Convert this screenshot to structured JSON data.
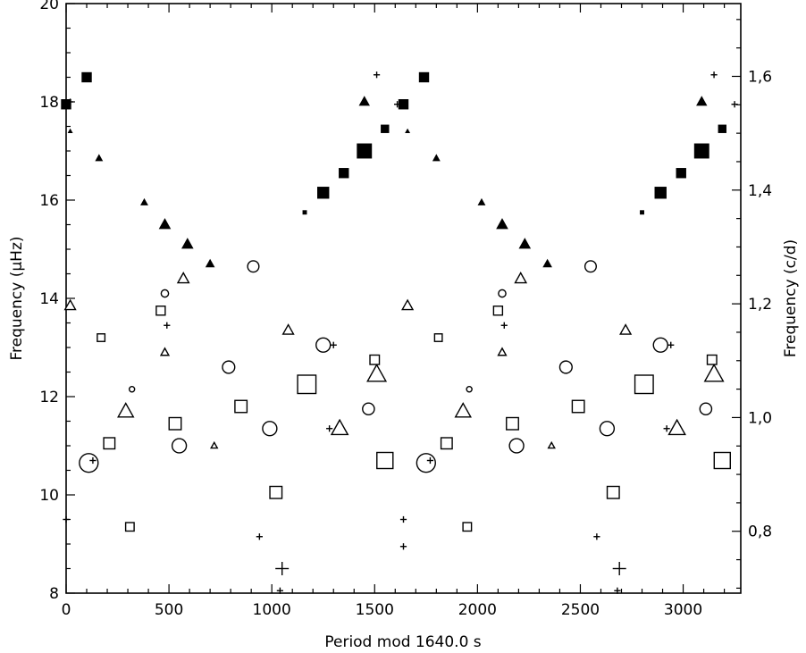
{
  "chart_data": {
    "type": "scatter",
    "xlabel": "Period mod 1640.0 s",
    "ylabel": "Frequency (μHz)",
    "y2label": "Frequency (c/d)",
    "xlim": [
      0,
      3280
    ],
    "ylim": [
      8,
      20
    ],
    "y2lim_c_per_d": [
      0.6912,
      1.728
    ],
    "x_ticks": [
      "0",
      "500",
      "1000",
      "1500",
      "2000",
      "2500",
      "3000"
    ],
    "y_ticks": [
      "8",
      "10",
      "12",
      "14",
      "16",
      "18",
      "20"
    ],
    "y2_ticks": [
      "0,8",
      "1,0",
      "1,2",
      "1,4",
      "1,6"
    ],
    "y2_tick_values": [
      0.8,
      1.0,
      1.2,
      1.4,
      1.6
    ],
    "marker_legend": {
      "filled-square": "sequence 1",
      "filled-triangle": "sequence 2",
      "open-triangle": "sequence 3",
      "open-square": "sequence 4",
      "open-circle": "sequence 5",
      "plus": "sequence 6"
    },
    "points": [
      {
        "m": "fsq",
        "s": 1.0,
        "x": 0,
        "y": 17.95
      },
      {
        "m": "fsq",
        "s": 1.0,
        "x": 100,
        "y": 18.5
      },
      {
        "m": "fsq",
        "s": 0.8,
        "x": 1550,
        "y": 17.45
      },
      {
        "m": "fsq",
        "s": 1.0,
        "x": 1640,
        "y": 17.95
      },
      {
        "m": "fsq",
        "s": 1.0,
        "x": 1740,
        "y": 18.5
      },
      {
        "m": "fsq",
        "s": 1.55,
        "x": 1450,
        "y": 17.0
      },
      {
        "m": "fsq",
        "s": 1.0,
        "x": 1350,
        "y": 16.55
      },
      {
        "m": "fsq",
        "s": 1.2,
        "x": 1250,
        "y": 16.15
      },
      {
        "m": "fsq",
        "s": 0.35,
        "x": 1160,
        "y": 15.75
      },
      {
        "m": "fsq",
        "s": 0.8,
        "x": 3190,
        "y": 17.45
      },
      {
        "m": "fsq",
        "s": 1.55,
        "x": 3090,
        "y": 17.0
      },
      {
        "m": "fsq",
        "s": 1.0,
        "x": 2990,
        "y": 16.55
      },
      {
        "m": "fsq",
        "s": 1.2,
        "x": 2890,
        "y": 16.15
      },
      {
        "m": "fsq",
        "s": 0.35,
        "x": 2800,
        "y": 15.75
      },
      {
        "m": "ftr",
        "s": 0.3,
        "x": 20,
        "y": 17.4
      },
      {
        "m": "ftr",
        "s": 0.55,
        "x": 160,
        "y": 16.85
      },
      {
        "m": "ftr",
        "s": 0.55,
        "x": 380,
        "y": 15.95
      },
      {
        "m": "ftr",
        "s": 0.95,
        "x": 480,
        "y": 15.5
      },
      {
        "m": "ftr",
        "s": 0.95,
        "x": 590,
        "y": 15.1
      },
      {
        "m": "ftr",
        "s": 0.7,
        "x": 700,
        "y": 14.7
      },
      {
        "m": "ftr",
        "s": 0.85,
        "x": 1450,
        "y": 18.0
      },
      {
        "m": "ftr",
        "s": 0.3,
        "x": 1660,
        "y": 17.4
      },
      {
        "m": "ftr",
        "s": 0.55,
        "x": 1800,
        "y": 16.85
      },
      {
        "m": "ftr",
        "s": 0.55,
        "x": 2020,
        "y": 15.95
      },
      {
        "m": "ftr",
        "s": 0.95,
        "x": 2120,
        "y": 15.5
      },
      {
        "m": "ftr",
        "s": 0.95,
        "x": 2230,
        "y": 15.1
      },
      {
        "m": "ftr",
        "s": 0.7,
        "x": 2340,
        "y": 14.7
      },
      {
        "m": "ftr",
        "s": 0.85,
        "x": 3090,
        "y": 18.0
      },
      {
        "m": "otr",
        "s": 1.0,
        "x": 20,
        "y": 13.85
      },
      {
        "m": "otr",
        "s": 0.75,
        "x": 480,
        "y": 12.9
      },
      {
        "m": "otr",
        "s": 1.05,
        "x": 570,
        "y": 14.4
      },
      {
        "m": "otr",
        "s": 1.45,
        "x": 290,
        "y": 11.7
      },
      {
        "m": "otr",
        "s": 0.6,
        "x": 720,
        "y": 11.0
      },
      {
        "m": "otr",
        "s": 1.0,
        "x": 1080,
        "y": 13.35
      },
      {
        "m": "otr",
        "s": 1.55,
        "x": 1330,
        "y": 11.35
      },
      {
        "m": "otr",
        "s": 1.75,
        "x": 1510,
        "y": 12.45
      },
      {
        "m": "otr",
        "s": 1.0,
        "x": 1660,
        "y": 13.85
      },
      {
        "m": "otr",
        "s": 0.75,
        "x": 2120,
        "y": 12.9
      },
      {
        "m": "otr",
        "s": 1.05,
        "x": 2210,
        "y": 14.4
      },
      {
        "m": "otr",
        "s": 1.45,
        "x": 1930,
        "y": 11.7
      },
      {
        "m": "otr",
        "s": 0.6,
        "x": 2360,
        "y": 11.0
      },
      {
        "m": "otr",
        "s": 1.0,
        "x": 2720,
        "y": 13.35
      },
      {
        "m": "otr",
        "s": 1.55,
        "x": 2970,
        "y": 11.35
      },
      {
        "m": "otr",
        "s": 1.75,
        "x": 3150,
        "y": 12.45
      },
      {
        "m": "osq",
        "s": 0.85,
        "x": 170,
        "y": 13.2
      },
      {
        "m": "osq",
        "s": 1.0,
        "x": 460,
        "y": 13.75
      },
      {
        "m": "osq",
        "s": 1.25,
        "x": 210,
        "y": 11.05
      },
      {
        "m": "osq",
        "s": 0.95,
        "x": 310,
        "y": 9.35
      },
      {
        "m": "osq",
        "s": 1.35,
        "x": 530,
        "y": 11.45
      },
      {
        "m": "osq",
        "s": 1.35,
        "x": 850,
        "y": 11.8
      },
      {
        "m": "osq",
        "s": 1.35,
        "x": 1020,
        "y": 10.05
      },
      {
        "m": "osq",
        "s": 2.05,
        "x": 1170,
        "y": 12.25
      },
      {
        "m": "osq",
        "s": 1.05,
        "x": 1500,
        "y": 12.75
      },
      {
        "m": "osq",
        "s": 1.8,
        "x": 1550,
        "y": 10.7
      },
      {
        "m": "osq",
        "s": 0.85,
        "x": 1810,
        "y": 13.2
      },
      {
        "m": "osq",
        "s": 1.0,
        "x": 2100,
        "y": 13.75
      },
      {
        "m": "osq",
        "s": 1.25,
        "x": 1850,
        "y": 11.05
      },
      {
        "m": "osq",
        "s": 0.95,
        "x": 1950,
        "y": 9.35
      },
      {
        "m": "osq",
        "s": 1.35,
        "x": 2170,
        "y": 11.45
      },
      {
        "m": "osq",
        "s": 1.35,
        "x": 2490,
        "y": 11.8
      },
      {
        "m": "osq",
        "s": 1.35,
        "x": 2660,
        "y": 10.05
      },
      {
        "m": "osq",
        "s": 2.05,
        "x": 2810,
        "y": 12.25
      },
      {
        "m": "osq",
        "s": 1.05,
        "x": 3140,
        "y": 12.75
      },
      {
        "m": "osq",
        "s": 1.8,
        "x": 3190,
        "y": 10.7
      },
      {
        "m": "ocir",
        "s": 0.55,
        "x": 320,
        "y": 12.15
      },
      {
        "m": "ocir",
        "s": 0.75,
        "x": 480,
        "y": 14.1
      },
      {
        "m": "ocir",
        "s": 1.9,
        "x": 110,
        "y": 10.65
      },
      {
        "m": "ocir",
        "s": 1.45,
        "x": 550,
        "y": 11.0
      },
      {
        "m": "ocir",
        "s": 1.25,
        "x": 790,
        "y": 12.6
      },
      {
        "m": "ocir",
        "s": 1.15,
        "x": 910,
        "y": 14.65
      },
      {
        "m": "ocir",
        "s": 1.45,
        "x": 990,
        "y": 11.35
      },
      {
        "m": "ocir",
        "s": 1.45,
        "x": 1250,
        "y": 13.05
      },
      {
        "m": "ocir",
        "s": 1.2,
        "x": 1470,
        "y": 11.75
      },
      {
        "m": "ocir",
        "s": 0.55,
        "x": 1960,
        "y": 12.15
      },
      {
        "m": "ocir",
        "s": 0.75,
        "x": 2120,
        "y": 14.1
      },
      {
        "m": "ocir",
        "s": 1.9,
        "x": 1750,
        "y": 10.65
      },
      {
        "m": "ocir",
        "s": 1.45,
        "x": 2190,
        "y": 11.0
      },
      {
        "m": "ocir",
        "s": 1.25,
        "x": 2430,
        "y": 12.6
      },
      {
        "m": "ocir",
        "s": 1.15,
        "x": 2550,
        "y": 14.65
      },
      {
        "m": "ocir",
        "s": 1.45,
        "x": 2630,
        "y": 11.35
      },
      {
        "m": "ocir",
        "s": 1.45,
        "x": 2890,
        "y": 13.05
      },
      {
        "m": "ocir",
        "s": 1.2,
        "x": 3110,
        "y": 11.75
      },
      {
        "m": "plus",
        "s": 0.6,
        "x": 20,
        "y": 18.0
      },
      {
        "m": "plus",
        "s": 0.6,
        "x": 0,
        "y": 9.5
      },
      {
        "m": "plus",
        "s": 0.6,
        "x": 490,
        "y": 13.45
      },
      {
        "m": "plus",
        "s": 0.6,
        "x": 130,
        "y": 10.7
      },
      {
        "m": "plus",
        "s": 0.6,
        "x": 940,
        "y": 9.15
      },
      {
        "m": "plus",
        "s": 1.25,
        "x": 1050,
        "y": 8.5
      },
      {
        "m": "plus",
        "s": 0.6,
        "x": 1040,
        "y": 8.05
      },
      {
        "m": "plus",
        "s": 0.6,
        "x": 1300,
        "y": 13.05
      },
      {
        "m": "plus",
        "s": 0.6,
        "x": 1280,
        "y": 11.35
      },
      {
        "m": "plus",
        "s": 0.6,
        "x": 1510,
        "y": 18.55
      },
      {
        "m": "plus",
        "s": 0.6,
        "x": 1610,
        "y": 17.95
      },
      {
        "m": "plus",
        "s": 0.6,
        "x": 1640,
        "y": 9.5
      },
      {
        "m": "plus",
        "s": 0.6,
        "x": 1640,
        "y": 8.95
      },
      {
        "m": "plus",
        "s": 0.6,
        "x": 2130,
        "y": 13.45
      },
      {
        "m": "plus",
        "s": 0.6,
        "x": 1770,
        "y": 10.7
      },
      {
        "m": "plus",
        "s": 0.6,
        "x": 2580,
        "y": 9.15
      },
      {
        "m": "plus",
        "s": 1.25,
        "x": 2690,
        "y": 8.5
      },
      {
        "m": "plus",
        "s": 0.6,
        "x": 2680,
        "y": 8.05
      },
      {
        "m": "plus",
        "s": 0.6,
        "x": 2940,
        "y": 13.05
      },
      {
        "m": "plus",
        "s": 0.6,
        "x": 2920,
        "y": 11.35
      },
      {
        "m": "plus",
        "s": 0.6,
        "x": 3150,
        "y": 18.55
      },
      {
        "m": "plus",
        "s": 0.6,
        "x": 3250,
        "y": 17.95
      }
    ]
  }
}
